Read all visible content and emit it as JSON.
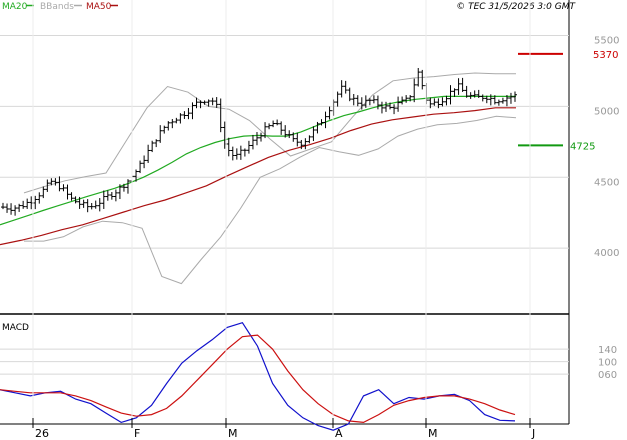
{
  "legend": [
    {
      "label": "MA20",
      "color": "#22aa22"
    },
    {
      "label": "BBands",
      "color": "#aaaaaa"
    },
    {
      "label": "MA50",
      "color": "#aa1111"
    }
  ],
  "copyright": "© TEC 31/5/2026 3:0 GMT",
  "chart_data": [
    {
      "type": "ohlc",
      "x_tick_labels": [
        "26",
        "F",
        "M",
        "A",
        "M",
        "J"
      ],
      "y_tick_labels": [
        "5500",
        "5000",
        "4500",
        "4000"
      ],
      "ylim": [
        3550,
        5750
      ],
      "grid": true,
      "legend_position": "top-left",
      "levels": [
        {
          "label": "5370",
          "value": 5370,
          "color": "#cc0000"
        },
        {
          "label": "4725",
          "value": 4725,
          "color": "#119911"
        }
      ],
      "price_samples": [
        4290,
        4282,
        4300,
        4340,
        4395,
        4470,
        4430,
        4350,
        4310,
        4288,
        4325,
        4372,
        4415,
        4480,
        4560,
        4680,
        4790,
        4880,
        4920,
        4960,
        5020,
        5050,
        5035,
        4720,
        4640,
        4690,
        4760,
        4830,
        4880,
        4825,
        4760,
        4740,
        4812,
        4900,
        5010,
        5130,
        5060,
        5020,
        5040,
        5010,
        4985,
        5020,
        5050,
        5240,
        5010,
        5030,
        5075,
        5150,
        5080,
        5060,
        5070,
        5040,
        5060,
        5075
      ],
      "series": [
        {
          "name": "MA20",
          "color": "#22aa22",
          "values": [
            4165,
            4198,
            4232,
            4266,
            4298,
            4330,
            4362,
            4392,
            4422,
            4458,
            4500,
            4550,
            4605,
            4665,
            4710,
            4745,
            4772,
            4790,
            4795,
            4790,
            4790,
            4820,
            4860,
            4900,
            4935,
            4960,
            4990,
            5015,
            5035,
            5050,
            5060,
            5070,
            5070,
            5070,
            5070,
            5070,
            5070
          ]
        },
        {
          "name": "BBands",
          "color": "#aaaaaa",
          "values": [
            4390,
            4435,
            4475,
            4505,
            4530,
            4760,
            4990,
            5140,
            5100,
            5000,
            4980,
            4900,
            4770,
            4650,
            4700,
            4750,
            4920,
            5080,
            5180,
            5200,
            5210,
            5225,
            5235,
            5230,
            5230
          ]
        },
        {
          "name": "BBands",
          "color": "#aaaaaa",
          "values": [
            4050,
            4050,
            4080,
            4150,
            4190,
            4180,
            4140,
            3800,
            3750,
            3920,
            4080,
            4280,
            4500,
            4560,
            4640,
            4710,
            4680,
            4655,
            4700,
            4790,
            4840,
            4870,
            4880,
            4900,
            4930,
            4920
          ]
        },
        {
          "name": "MA50",
          "color": "#aa1111",
          "values": [
            4025,
            4055,
            4090,
            4130,
            4165,
            4210,
            4255,
            4300,
            4340,
            4390,
            4440,
            4510,
            4575,
            4640,
            4690,
            4730,
            4775,
            4830,
            4875,
            4905,
            4925,
            4945,
            4955,
            4970,
            4990,
            4990
          ]
        }
      ]
    },
    {
      "type": "line",
      "title": "MACD",
      "y_tick_labels": [
        "140",
        "100",
        "060"
      ],
      "ylim": [
        -100,
        240
      ],
      "grid": true,
      "series": [
        {
          "name": "MACD",
          "color": "#1111cc",
          "values": [
            10,
            0,
            -10,
            0,
            5,
            -20,
            -35,
            -65,
            -95,
            -80,
            -40,
            30,
            95,
            135,
            170,
            210,
            225,
            150,
            30,
            -40,
            -80,
            -105,
            -120,
            -100,
            -10,
            10,
            -35,
            -15,
            -20,
            -10,
            -5,
            -25,
            -70,
            -88,
            -90
          ]
        },
        {
          "name": "Signal",
          "color": "#cc1111",
          "values": [
            10,
            5,
            0,
            0,
            0,
            -10,
            -25,
            -45,
            -65,
            -75,
            -70,
            -50,
            -10,
            40,
            90,
            140,
            180,
            185,
            140,
            70,
            10,
            -35,
            -70,
            -90,
            -95,
            -70,
            -40,
            -25,
            -15,
            -10,
            -10,
            -20,
            -35,
            -55,
            -70
          ]
        }
      ]
    }
  ]
}
